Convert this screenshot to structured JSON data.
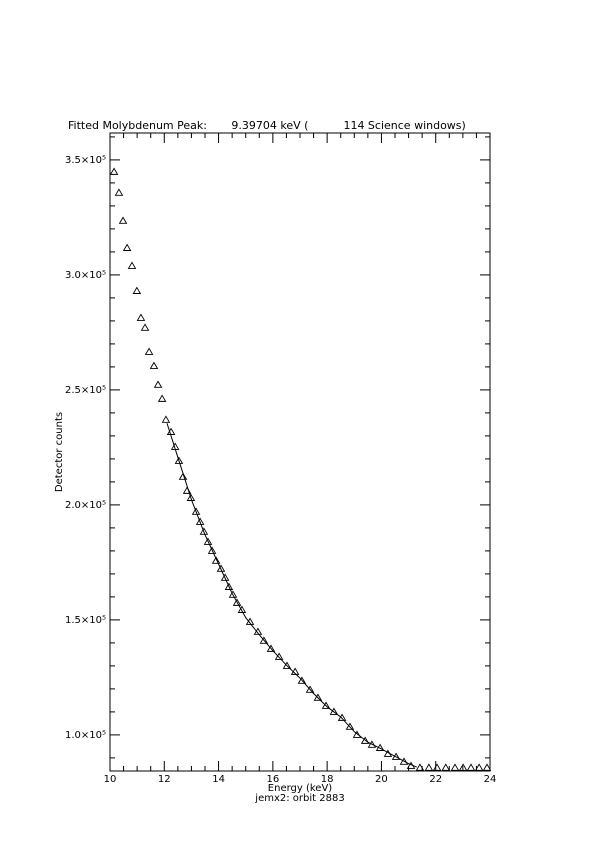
{
  "chart_data": {
    "type": "scatter",
    "title": "Fitted Molybdenum Peak:       9.39704 keV (          114 Science windows)",
    "x_label": "Energy (keV)",
    "y_label": "Detector counts",
    "subtitle": "jemx2: orbit 2883",
    "xlim": [
      10,
      24
    ],
    "xticks": [
      10,
      12,
      14,
      16,
      18,
      20,
      22,
      24
    ],
    "ylim": [
      84300,
      361700
    ],
    "yticks": [
      {
        "value": 100000,
        "label": "1.0×10⁵"
      },
      {
        "value": 150000,
        "label": "1.5×10⁵"
      },
      {
        "value": 200000,
        "label": "2.0×10⁵"
      },
      {
        "value": 250000,
        "label": "2.5×10⁵"
      },
      {
        "value": 300000,
        "label": "3.0×10⁵"
      },
      {
        "value": 350000,
        "label": "3.5×10⁵"
      }
    ],
    "color": "#000000",
    "series": [
      {
        "kind": "points",
        "x": [
          10.15,
          10.33,
          10.48,
          10.63,
          10.81,
          10.99,
          11.14,
          11.29,
          11.44,
          11.62,
          11.77,
          11.92,
          12.06,
          12.25,
          12.4,
          12.54,
          12.69,
          12.84,
          12.98,
          13.17,
          13.32,
          13.46,
          13.61,
          13.76,
          13.91,
          14.09,
          14.24,
          14.38,
          14.53,
          14.68,
          14.86,
          15.16,
          15.45,
          15.67,
          15.93,
          16.23,
          16.52,
          16.82,
          17.07,
          17.37,
          17.66,
          17.96,
          18.25,
          18.55,
          18.84,
          19.1,
          19.4,
          19.65,
          19.95,
          20.24,
          20.54,
          20.83,
          21.09,
          21.42,
          21.75,
          22.05,
          22.37,
          22.71,
          23.01,
          23.3,
          23.6,
          23.89
        ],
        "values": [
          344800,
          335700,
          323500,
          311700,
          303900,
          293000,
          281300,
          277000,
          266500,
          260400,
          252200,
          246100,
          237000,
          231700,
          225200,
          219100,
          212200,
          206100,
          203000,
          197000,
          192600,
          188300,
          183900,
          180000,
          175700,
          172200,
          168300,
          164300,
          160900,
          157400,
          154300,
          149100,
          144800,
          140900,
          137400,
          133900,
          130000,
          127400,
          123500,
          119600,
          116100,
          112600,
          110000,
          107400,
          103500,
          100000,
          97400,
          95700,
          94300,
          91700,
          90400,
          88300,
          86500,
          85700,
          85700,
          85700,
          85700,
          85700,
          85700,
          85700,
          85700,
          85700
        ]
      },
      {
        "kind": "fit",
        "x": [
          12.1,
          12.5,
          13,
          13.5,
          14,
          14.5,
          15,
          15.5,
          16,
          16.5,
          17,
          17.5,
          18,
          18.5,
          19,
          19.5,
          20,
          20.5,
          21,
          21.3
        ],
        "values": [
          235500,
          220700,
          202300,
          187000,
          174300,
          161500,
          151000,
          143500,
          136600,
          130300,
          124700,
          118000,
          112200,
          107800,
          101400,
          96800,
          93900,
          90700,
          87500,
          86000
        ]
      }
    ]
  }
}
